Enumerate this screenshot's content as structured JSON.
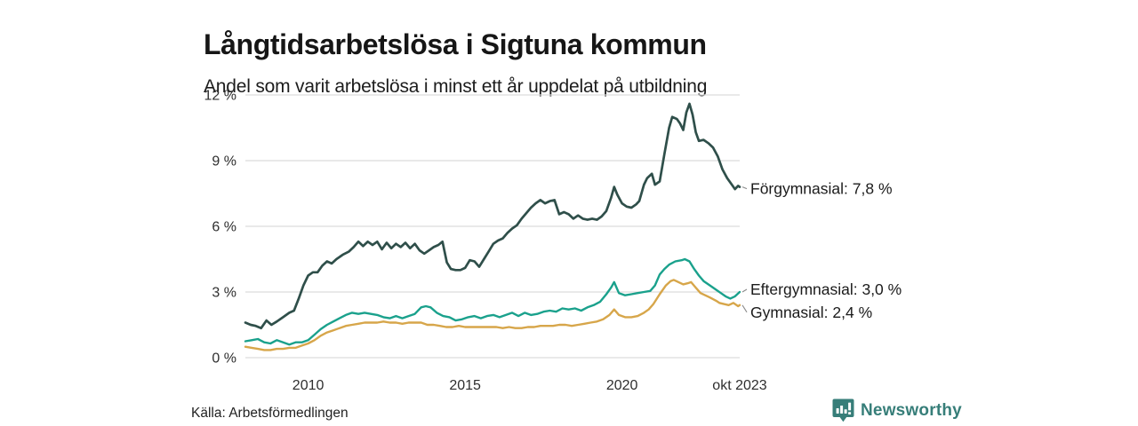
{
  "chart_data": {
    "type": "line",
    "title": "Långtidsarbetslösa i Sigtuna kommun",
    "subtitle": "Andel som varit arbetslösa i minst ett år uppdelat på utbildning",
    "source": "Källa: Arbetsförmedlingen",
    "unit": "%",
    "grid_on": true,
    "grid_color": "#dcdcdc",
    "axis_text_color": "#2e2e2e",
    "label_text_color": "#1b1b1b",
    "connector_color": "#8a8a8a",
    "legend_position": "end-of-line-labels",
    "x_axis": {
      "range": [
        2008.0,
        2023.75
      ],
      "ticks": [
        {
          "label": "2010",
          "year": 2010
        },
        {
          "label": "2015",
          "year": 2015
        },
        {
          "label": "2020",
          "year": 2020
        },
        {
          "label": "okt 2023",
          "year": 2023.75
        }
      ]
    },
    "y_axis": {
      "range": [
        0,
        12
      ],
      "ticks": [
        {
          "label": "0 %",
          "value": 0
        },
        {
          "label": "3 %",
          "value": 3
        },
        {
          "label": "6 %",
          "value": 6
        },
        {
          "label": "9 %",
          "value": 9
        },
        {
          "label": "12 %",
          "value": 12
        }
      ]
    },
    "series": [
      {
        "name": "Förgymnasial",
        "end_label": "Förgymnasial: 7,8 %",
        "last_value": 7.8,
        "color": "#2f4f4a",
        "points": [
          [
            2008.0,
            1.6
          ],
          [
            2008.17,
            1.5
          ],
          [
            2008.33,
            1.45
          ],
          [
            2008.5,
            1.35
          ],
          [
            2008.67,
            1.7
          ],
          [
            2008.83,
            1.5
          ],
          [
            2009.0,
            1.65
          ],
          [
            2009.2,
            1.85
          ],
          [
            2009.4,
            2.05
          ],
          [
            2009.55,
            2.15
          ],
          [
            2009.7,
            2.7
          ],
          [
            2009.85,
            3.3
          ],
          [
            2010.0,
            3.75
          ],
          [
            2010.15,
            3.9
          ],
          [
            2010.3,
            3.9
          ],
          [
            2010.45,
            4.2
          ],
          [
            2010.6,
            4.4
          ],
          [
            2010.75,
            4.3
          ],
          [
            2010.9,
            4.5
          ],
          [
            2011.1,
            4.7
          ],
          [
            2011.3,
            4.85
          ],
          [
            2011.45,
            5.05
          ],
          [
            2011.6,
            5.3
          ],
          [
            2011.75,
            5.1
          ],
          [
            2011.9,
            5.3
          ],
          [
            2012.05,
            5.15
          ],
          [
            2012.2,
            5.3
          ],
          [
            2012.35,
            4.95
          ],
          [
            2012.5,
            5.25
          ],
          [
            2012.65,
            5.0
          ],
          [
            2012.8,
            5.2
          ],
          [
            2012.95,
            5.05
          ],
          [
            2013.1,
            5.25
          ],
          [
            2013.25,
            5.0
          ],
          [
            2013.4,
            5.2
          ],
          [
            2013.55,
            4.9
          ],
          [
            2013.7,
            4.75
          ],
          [
            2013.85,
            4.9
          ],
          [
            2014.0,
            5.05
          ],
          [
            2014.15,
            5.15
          ],
          [
            2014.28,
            5.3
          ],
          [
            2014.42,
            4.35
          ],
          [
            2014.55,
            4.05
          ],
          [
            2014.7,
            4.0
          ],
          [
            2014.85,
            4.0
          ],
          [
            2015.0,
            4.1
          ],
          [
            2015.15,
            4.45
          ],
          [
            2015.3,
            4.4
          ],
          [
            2015.45,
            4.15
          ],
          [
            2015.6,
            4.5
          ],
          [
            2015.75,
            4.85
          ],
          [
            2015.9,
            5.2
          ],
          [
            2016.05,
            5.35
          ],
          [
            2016.2,
            5.45
          ],
          [
            2016.35,
            5.7
          ],
          [
            2016.5,
            5.9
          ],
          [
            2016.65,
            6.05
          ],
          [
            2016.8,
            6.35
          ],
          [
            2016.95,
            6.6
          ],
          [
            2017.1,
            6.85
          ],
          [
            2017.25,
            7.05
          ],
          [
            2017.4,
            7.2
          ],
          [
            2017.55,
            7.05
          ],
          [
            2017.7,
            7.15
          ],
          [
            2017.85,
            7.2
          ],
          [
            2018.0,
            6.55
          ],
          [
            2018.15,
            6.65
          ],
          [
            2018.3,
            6.55
          ],
          [
            2018.45,
            6.35
          ],
          [
            2018.6,
            6.5
          ],
          [
            2018.75,
            6.35
          ],
          [
            2018.9,
            6.3
          ],
          [
            2019.05,
            6.35
          ],
          [
            2019.2,
            6.3
          ],
          [
            2019.35,
            6.45
          ],
          [
            2019.5,
            6.7
          ],
          [
            2019.65,
            7.3
          ],
          [
            2019.75,
            7.8
          ],
          [
            2019.85,
            7.45
          ],
          [
            2020.0,
            7.05
          ],
          [
            2020.15,
            6.9
          ],
          [
            2020.3,
            6.85
          ],
          [
            2020.45,
            7.0
          ],
          [
            2020.55,
            7.15
          ],
          [
            2020.7,
            7.9
          ],
          [
            2020.8,
            8.2
          ],
          [
            2020.95,
            8.4
          ],
          [
            2021.05,
            7.9
          ],
          [
            2021.2,
            8.05
          ],
          [
            2021.35,
            9.3
          ],
          [
            2021.5,
            10.5
          ],
          [
            2021.6,
            11.0
          ],
          [
            2021.75,
            10.9
          ],
          [
            2021.85,
            10.7
          ],
          [
            2021.95,
            10.4
          ],
          [
            2022.05,
            11.2
          ],
          [
            2022.15,
            11.6
          ],
          [
            2022.25,
            11.1
          ],
          [
            2022.35,
            10.3
          ],
          [
            2022.45,
            9.9
          ],
          [
            2022.6,
            9.95
          ],
          [
            2022.75,
            9.8
          ],
          [
            2022.9,
            9.6
          ],
          [
            2023.05,
            9.2
          ],
          [
            2023.2,
            8.6
          ],
          [
            2023.35,
            8.2
          ],
          [
            2023.5,
            7.9
          ],
          [
            2023.6,
            7.7
          ],
          [
            2023.7,
            7.85
          ],
          [
            2023.75,
            7.8
          ]
        ]
      },
      {
        "name": "Eftergymnasial",
        "end_label": "Eftergymnasial: 3,0 %",
        "last_value": 3.0,
        "color": "#1aa18c",
        "points": [
          [
            2008.0,
            0.75
          ],
          [
            2008.2,
            0.8
          ],
          [
            2008.4,
            0.85
          ],
          [
            2008.6,
            0.7
          ],
          [
            2008.8,
            0.65
          ],
          [
            2009.0,
            0.8
          ],
          [
            2009.2,
            0.7
          ],
          [
            2009.4,
            0.6
          ],
          [
            2009.6,
            0.7
          ],
          [
            2009.8,
            0.7
          ],
          [
            2010.0,
            0.8
          ],
          [
            2010.2,
            1.05
          ],
          [
            2010.4,
            1.3
          ],
          [
            2010.6,
            1.5
          ],
          [
            2010.8,
            1.65
          ],
          [
            2011.0,
            1.8
          ],
          [
            2011.2,
            1.95
          ],
          [
            2011.4,
            2.05
          ],
          [
            2011.6,
            2.0
          ],
          [
            2011.8,
            2.05
          ],
          [
            2012.0,
            2.0
          ],
          [
            2012.2,
            1.95
          ],
          [
            2012.4,
            1.85
          ],
          [
            2012.6,
            1.8
          ],
          [
            2012.8,
            1.9
          ],
          [
            2013.0,
            1.8
          ],
          [
            2013.2,
            1.9
          ],
          [
            2013.4,
            2.0
          ],
          [
            2013.6,
            2.3
          ],
          [
            2013.75,
            2.35
          ],
          [
            2013.9,
            2.3
          ],
          [
            2014.1,
            2.05
          ],
          [
            2014.3,
            1.9
          ],
          [
            2014.5,
            1.85
          ],
          [
            2014.7,
            1.7
          ],
          [
            2014.9,
            1.75
          ],
          [
            2015.1,
            1.85
          ],
          [
            2015.3,
            1.9
          ],
          [
            2015.5,
            1.8
          ],
          [
            2015.7,
            1.9
          ],
          [
            2015.9,
            1.95
          ],
          [
            2016.1,
            1.85
          ],
          [
            2016.3,
            1.95
          ],
          [
            2016.5,
            2.05
          ],
          [
            2016.7,
            1.9
          ],
          [
            2016.9,
            2.05
          ],
          [
            2017.1,
            1.95
          ],
          [
            2017.3,
            2.0
          ],
          [
            2017.5,
            2.1
          ],
          [
            2017.7,
            2.15
          ],
          [
            2017.9,
            2.1
          ],
          [
            2018.1,
            2.25
          ],
          [
            2018.3,
            2.2
          ],
          [
            2018.5,
            2.25
          ],
          [
            2018.7,
            2.15
          ],
          [
            2018.9,
            2.3
          ],
          [
            2019.1,
            2.4
          ],
          [
            2019.3,
            2.55
          ],
          [
            2019.5,
            2.9
          ],
          [
            2019.65,
            3.2
          ],
          [
            2019.75,
            3.45
          ],
          [
            2019.9,
            2.95
          ],
          [
            2020.1,
            2.85
          ],
          [
            2020.3,
            2.9
          ],
          [
            2020.5,
            2.95
          ],
          [
            2020.7,
            3.0
          ],
          [
            2020.9,
            3.05
          ],
          [
            2021.05,
            3.3
          ],
          [
            2021.2,
            3.8
          ],
          [
            2021.35,
            4.05
          ],
          [
            2021.5,
            4.25
          ],
          [
            2021.7,
            4.4
          ],
          [
            2021.9,
            4.45
          ],
          [
            2022.0,
            4.5
          ],
          [
            2022.15,
            4.4
          ],
          [
            2022.3,
            4.05
          ],
          [
            2022.45,
            3.75
          ],
          [
            2022.6,
            3.5
          ],
          [
            2022.8,
            3.3
          ],
          [
            2023.0,
            3.1
          ],
          [
            2023.15,
            2.95
          ],
          [
            2023.3,
            2.8
          ],
          [
            2023.45,
            2.7
          ],
          [
            2023.6,
            2.8
          ],
          [
            2023.75,
            3.0
          ]
        ]
      },
      {
        "name": "Gymnasial",
        "end_label": "Gymnasial: 2,4 %",
        "last_value": 2.4,
        "color": "#d7a64a",
        "points": [
          [
            2008.0,
            0.5
          ],
          [
            2008.2,
            0.45
          ],
          [
            2008.4,
            0.4
          ],
          [
            2008.6,
            0.35
          ],
          [
            2008.8,
            0.35
          ],
          [
            2009.0,
            0.4
          ],
          [
            2009.2,
            0.4
          ],
          [
            2009.4,
            0.45
          ],
          [
            2009.6,
            0.45
          ],
          [
            2009.8,
            0.55
          ],
          [
            2010.0,
            0.65
          ],
          [
            2010.2,
            0.8
          ],
          [
            2010.4,
            1.0
          ],
          [
            2010.6,
            1.15
          ],
          [
            2010.8,
            1.25
          ],
          [
            2011.0,
            1.35
          ],
          [
            2011.2,
            1.45
          ],
          [
            2011.4,
            1.5
          ],
          [
            2011.6,
            1.55
          ],
          [
            2011.8,
            1.6
          ],
          [
            2012.0,
            1.6
          ],
          [
            2012.2,
            1.6
          ],
          [
            2012.4,
            1.65
          ],
          [
            2012.6,
            1.6
          ],
          [
            2012.8,
            1.6
          ],
          [
            2013.0,
            1.55
          ],
          [
            2013.2,
            1.6
          ],
          [
            2013.4,
            1.6
          ],
          [
            2013.6,
            1.6
          ],
          [
            2013.8,
            1.5
          ],
          [
            2014.0,
            1.5
          ],
          [
            2014.2,
            1.45
          ],
          [
            2014.4,
            1.4
          ],
          [
            2014.6,
            1.4
          ],
          [
            2014.8,
            1.45
          ],
          [
            2015.0,
            1.4
          ],
          [
            2015.2,
            1.4
          ],
          [
            2015.4,
            1.4
          ],
          [
            2015.6,
            1.4
          ],
          [
            2015.8,
            1.4
          ],
          [
            2016.0,
            1.4
          ],
          [
            2016.2,
            1.35
          ],
          [
            2016.4,
            1.4
          ],
          [
            2016.6,
            1.35
          ],
          [
            2016.8,
            1.35
          ],
          [
            2017.0,
            1.4
          ],
          [
            2017.2,
            1.4
          ],
          [
            2017.4,
            1.45
          ],
          [
            2017.6,
            1.45
          ],
          [
            2017.8,
            1.45
          ],
          [
            2018.0,
            1.5
          ],
          [
            2018.2,
            1.5
          ],
          [
            2018.4,
            1.45
          ],
          [
            2018.6,
            1.5
          ],
          [
            2018.8,
            1.55
          ],
          [
            2019.0,
            1.6
          ],
          [
            2019.2,
            1.65
          ],
          [
            2019.4,
            1.75
          ],
          [
            2019.6,
            1.95
          ],
          [
            2019.75,
            2.2
          ],
          [
            2019.9,
            1.95
          ],
          [
            2020.1,
            1.85
          ],
          [
            2020.3,
            1.85
          ],
          [
            2020.5,
            1.9
          ],
          [
            2020.7,
            2.05
          ],
          [
            2020.85,
            2.2
          ],
          [
            2021.0,
            2.45
          ],
          [
            2021.2,
            2.9
          ],
          [
            2021.4,
            3.3
          ],
          [
            2021.55,
            3.5
          ],
          [
            2021.65,
            3.55
          ],
          [
            2021.8,
            3.45
          ],
          [
            2021.95,
            3.35
          ],
          [
            2022.1,
            3.4
          ],
          [
            2022.2,
            3.45
          ],
          [
            2022.35,
            3.2
          ],
          [
            2022.5,
            2.95
          ],
          [
            2022.65,
            2.85
          ],
          [
            2022.8,
            2.75
          ],
          [
            2023.0,
            2.6
          ],
          [
            2023.1,
            2.5
          ],
          [
            2023.25,
            2.45
          ],
          [
            2023.4,
            2.4
          ],
          [
            2023.55,
            2.5
          ],
          [
            2023.7,
            2.35
          ],
          [
            2023.75,
            2.4
          ]
        ]
      }
    ]
  },
  "branding": {
    "name": "Newsworthy",
    "color": "#377e79",
    "icon": "bar-chart-pin-badge-icon"
  }
}
